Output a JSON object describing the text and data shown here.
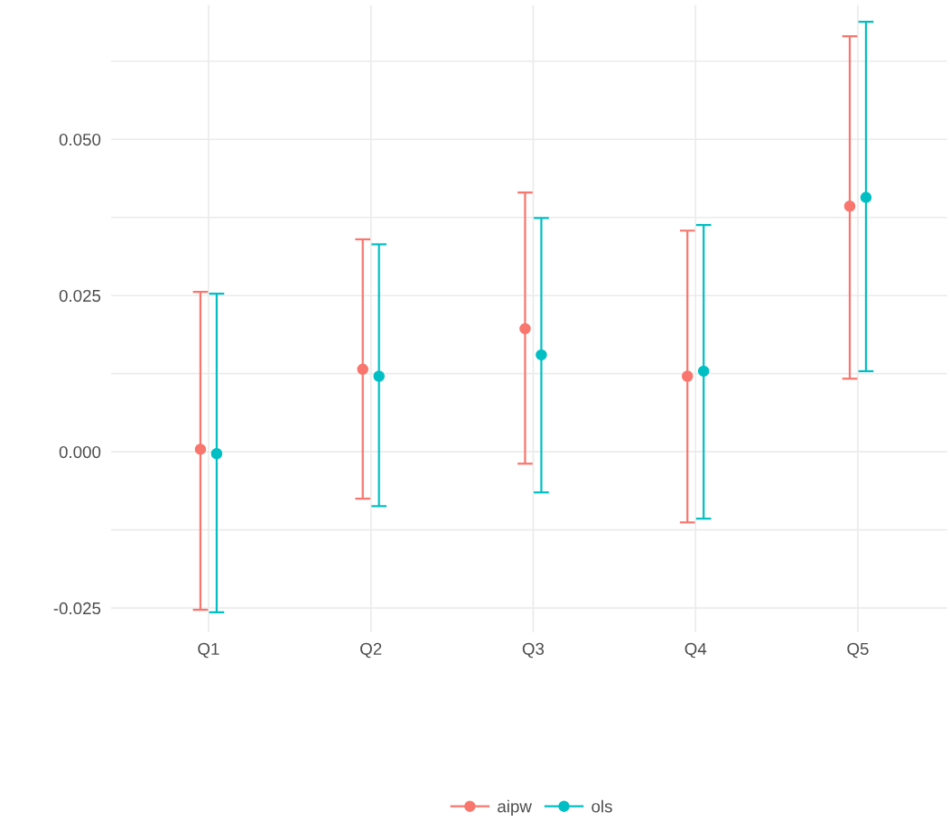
{
  "chart_data": {
    "type": "scatter",
    "categories": [
      "Q1",
      "Q2",
      "Q3",
      "Q4",
      "Q5"
    ],
    "series": [
      {
        "name": "aipw",
        "color": "#f8766d",
        "values": [
          0.0004,
          0.0132,
          0.0197,
          0.0121,
          0.0393
        ],
        "errors": [
          [
            -0.0253,
            0.0256
          ],
          [
            -0.0075,
            0.034
          ],
          [
            -0.0019,
            0.0415
          ],
          [
            -0.0113,
            0.0354
          ],
          [
            0.0117,
            0.0665
          ]
        ]
      },
      {
        "name": "ols",
        "color": "#00bfc4",
        "values": [
          -0.0003,
          0.0121,
          0.0155,
          0.0129,
          0.0407
        ],
        "errors": [
          [
            -0.0257,
            0.0253
          ],
          [
            -0.0087,
            0.0332
          ],
          [
            -0.0065,
            0.0374
          ],
          [
            -0.0107,
            0.0363
          ],
          [
            0.0129,
            0.0688
          ]
        ]
      }
    ],
    "ylim": [
      -0.0289,
      0.0715
    ],
    "yticks": [
      {
        "value": -0.025,
        "label": "-0.025"
      },
      {
        "value": -0.0125,
        "label": null
      },
      {
        "value": 0.0,
        "label": "0.000"
      },
      {
        "value": 0.0125,
        "label": null
      },
      {
        "value": 0.025,
        "label": "0.025"
      },
      {
        "value": 0.0375,
        "label": null
      },
      {
        "value": 0.05,
        "label": "0.050"
      },
      {
        "value": 0.0625,
        "label": null
      }
    ],
    "grid": true,
    "legend": "bottom",
    "marker": "circle"
  }
}
